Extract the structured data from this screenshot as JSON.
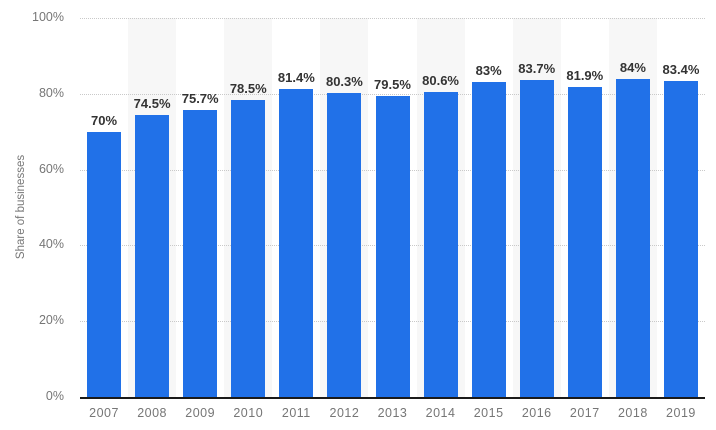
{
  "chart_data": {
    "type": "bar",
    "title": "",
    "xlabel": "",
    "ylabel": "Share of businesses",
    "categories": [
      "2007",
      "2008",
      "2009",
      "2010",
      "2011",
      "2012",
      "2013",
      "2014",
      "2015",
      "2016",
      "2017",
      "2018",
      "2019"
    ],
    "values": [
      70,
      74.5,
      75.7,
      78.5,
      81.4,
      80.3,
      79.5,
      80.6,
      83,
      83.7,
      81.9,
      84,
      83.4
    ],
    "value_labels": [
      "70%",
      "74.5%",
      "75.7%",
      "78.5%",
      "81.4%",
      "80.3%",
      "79.5%",
      "80.6%",
      "83%",
      "83.7%",
      "81.9%",
      "84%",
      "83.4%"
    ],
    "ylim": [
      0,
      100
    ],
    "ytick_values": [
      0,
      20,
      40,
      60,
      80,
      100
    ],
    "ytick_labels": [
      "0%",
      "20%",
      "40%",
      "60%",
      "80%",
      "100%"
    ],
    "grid": "horizontal-dotted",
    "legend": "none",
    "alt_band_years": [
      "2008",
      "2010",
      "2012",
      "2014",
      "2016",
      "2018"
    ],
    "colors": {
      "bar": "#2171E8",
      "alt_band": "#F7F7F7",
      "gridline": "#C9C9C9",
      "axis_line": "#1A1A1A",
      "tick_text": "#767676",
      "value_label": "#333333",
      "background": "#FFFFFF"
    }
  }
}
